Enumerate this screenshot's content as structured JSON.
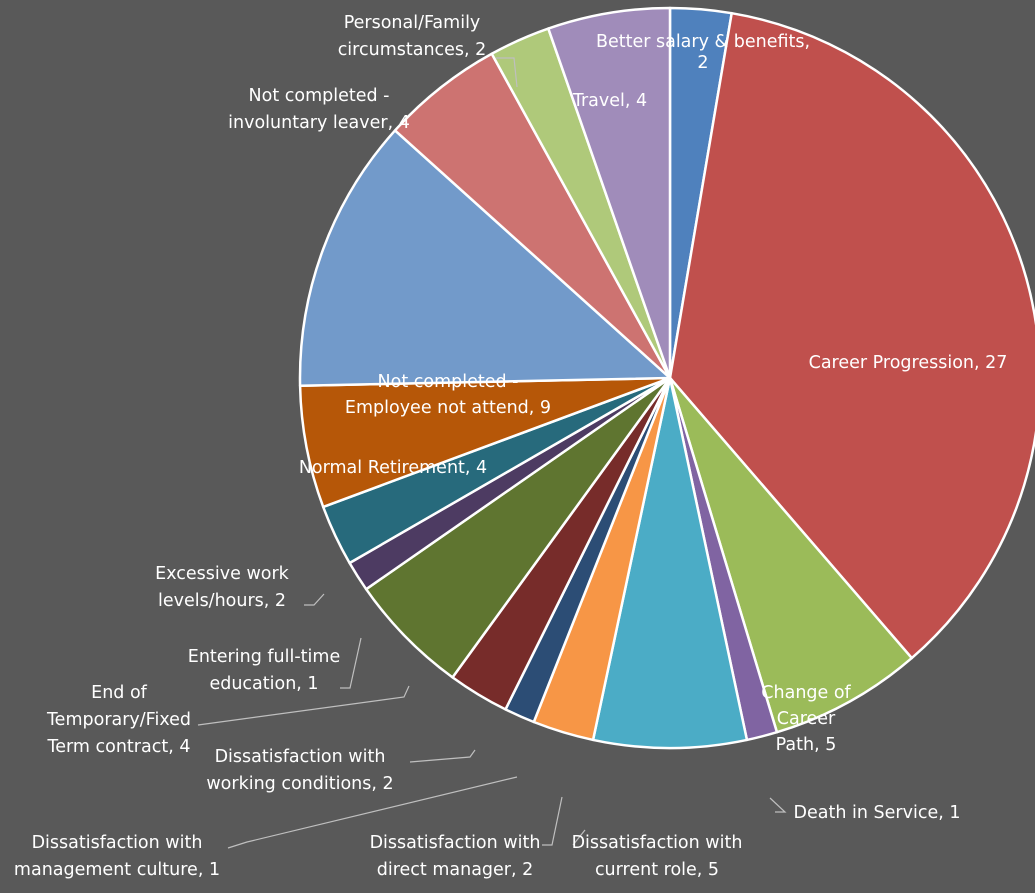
{
  "chart_data": {
    "type": "pie",
    "title": "",
    "background": "#595959",
    "slices": [
      {
        "label": "Better salary & benefits, 2",
        "category": "Better salary & benefits",
        "value": 2,
        "color": "#4f81bd"
      },
      {
        "label": "Career Progression, 27",
        "category": "Career Progression",
        "value": 27,
        "color": "#c0504d"
      },
      {
        "label": "Change of Career Path, 5",
        "category": "Change of Career Path",
        "value": 5,
        "color": "#9bbb59"
      },
      {
        "label": "Death in Service, 1",
        "category": "Death in Service",
        "value": 1,
        "color": "#8064a2"
      },
      {
        "label": "Dissatisfaction with current role, 5",
        "category": "Dissatisfaction with current role",
        "value": 5,
        "color": "#4bacc6"
      },
      {
        "label": "Dissatisfaction with direct manager, 2",
        "category": "Dissatisfaction with direct manager",
        "value": 2,
        "color": "#f79646"
      },
      {
        "label": "Dissatisfaction with management culture, 1",
        "category": "Dissatisfaction with management culture",
        "value": 1,
        "color": "#2c4d75"
      },
      {
        "label": "Dissatisfaction with working conditions, 2",
        "category": "Dissatisfaction with working conditions",
        "value": 2,
        "color": "#772c2a"
      },
      {
        "label": "End of Temporary/Fixed Term contract, 4",
        "category": "End of Temporary/Fixed Term contract",
        "value": 4,
        "color": "#5f7530"
      },
      {
        "label": "Entering full-time education, 1",
        "category": "Entering full-time education",
        "value": 1,
        "color": "#4d3b62"
      },
      {
        "label": "Excessive work levels/hours, 2",
        "category": "Excessive work levels/hours",
        "value": 2,
        "color": "#276a7c"
      },
      {
        "label": "Normal Retirement, 4",
        "category": "Normal Retirement",
        "value": 4,
        "color": "#b65708"
      },
      {
        "label": "Not completed - Employee not attend, 9",
        "category": "Not completed - Employee not attend",
        "value": 9,
        "color": "#729aca"
      },
      {
        "label": "Not completed - involuntary leaver, 4",
        "category": "Not completed - involuntary leaver",
        "value": 4,
        "color": "#cd7371"
      },
      {
        "label": "Personal/Family circumstances, 2",
        "category": "Personal/Family circumstances",
        "value": 2,
        "color": "#afc97a"
      },
      {
        "label": "Travel, 4",
        "category": "Travel",
        "value": 4,
        "color": "#a08cba"
      }
    ],
    "data_labels": [
      {
        "lines": [
          "Better salary & benefits,",
          "2"
        ]
      },
      {
        "lines": [
          "Career Progression, 27"
        ]
      },
      {
        "lines": [
          "Change of",
          "Career",
          "Path, 5"
        ]
      },
      {
        "lines": [
          "Death in Service, 1"
        ]
      },
      {
        "lines": [
          "Dissatisfaction with",
          "current role, 5"
        ]
      },
      {
        "lines": [
          "Dissatisfaction with",
          "direct manager, 2"
        ]
      },
      {
        "lines": [
          "Dissatisfaction with",
          "management culture, 1"
        ]
      },
      {
        "lines": [
          "Dissatisfaction with",
          "working conditions, 2"
        ]
      },
      {
        "lines": [
          "End of",
          "Temporary/Fixed",
          "Term contract, 4"
        ]
      },
      {
        "lines": [
          "Entering full-time",
          "education, 1"
        ]
      },
      {
        "lines": [
          "Excessive work",
          "levels/hours, 2"
        ]
      },
      {
        "lines": [
          "Normal Retirement, 4"
        ]
      },
      {
        "lines": [
          "Not completed -",
          "Employee not attend, 9"
        ]
      },
      {
        "lines": [
          "Not completed -",
          "involuntary leaver, 4"
        ]
      },
      {
        "lines": [
          "Personal/Family",
          "circumstances, 2"
        ]
      },
      {
        "lines": [
          "Travel, 4"
        ]
      }
    ],
    "legend": "none",
    "start_angle": "12 o'clock",
    "direction": "clockwise"
  }
}
